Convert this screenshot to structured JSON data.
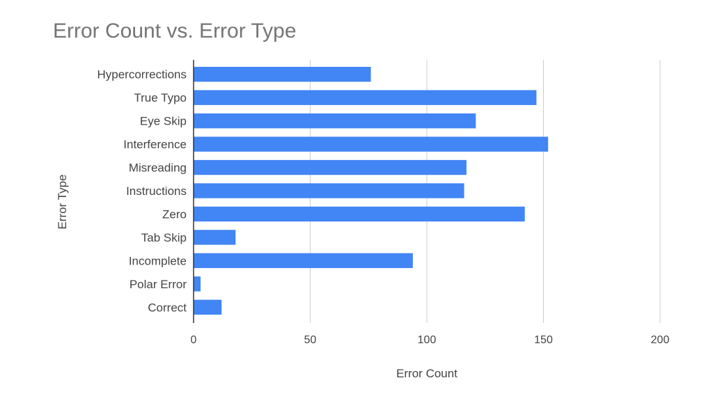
{
  "chart_data": {
    "type": "bar",
    "orientation": "horizontal",
    "title": "Error Count vs. Error Type",
    "xlabel": "Error Count",
    "ylabel": "Error Type",
    "categories": [
      "Hypercorrections",
      "True Typo",
      "Eye Skip",
      "Interference",
      "Misreading",
      "Instructions",
      "Zero",
      "Tab Skip",
      "Incomplete",
      "Polar Error",
      "Correct"
    ],
    "values": [
      76,
      147,
      121,
      152,
      117,
      116,
      142,
      18,
      94,
      3,
      12
    ],
    "xlim": [
      0,
      200
    ],
    "xticks": [
      0,
      50,
      100,
      150,
      200
    ],
    "grid": true,
    "legend": "none",
    "colors": {
      "bar": "#4285f4",
      "grid": "#cccccc",
      "axis": "#333333",
      "text": "#444444",
      "title": "#757575"
    }
  }
}
